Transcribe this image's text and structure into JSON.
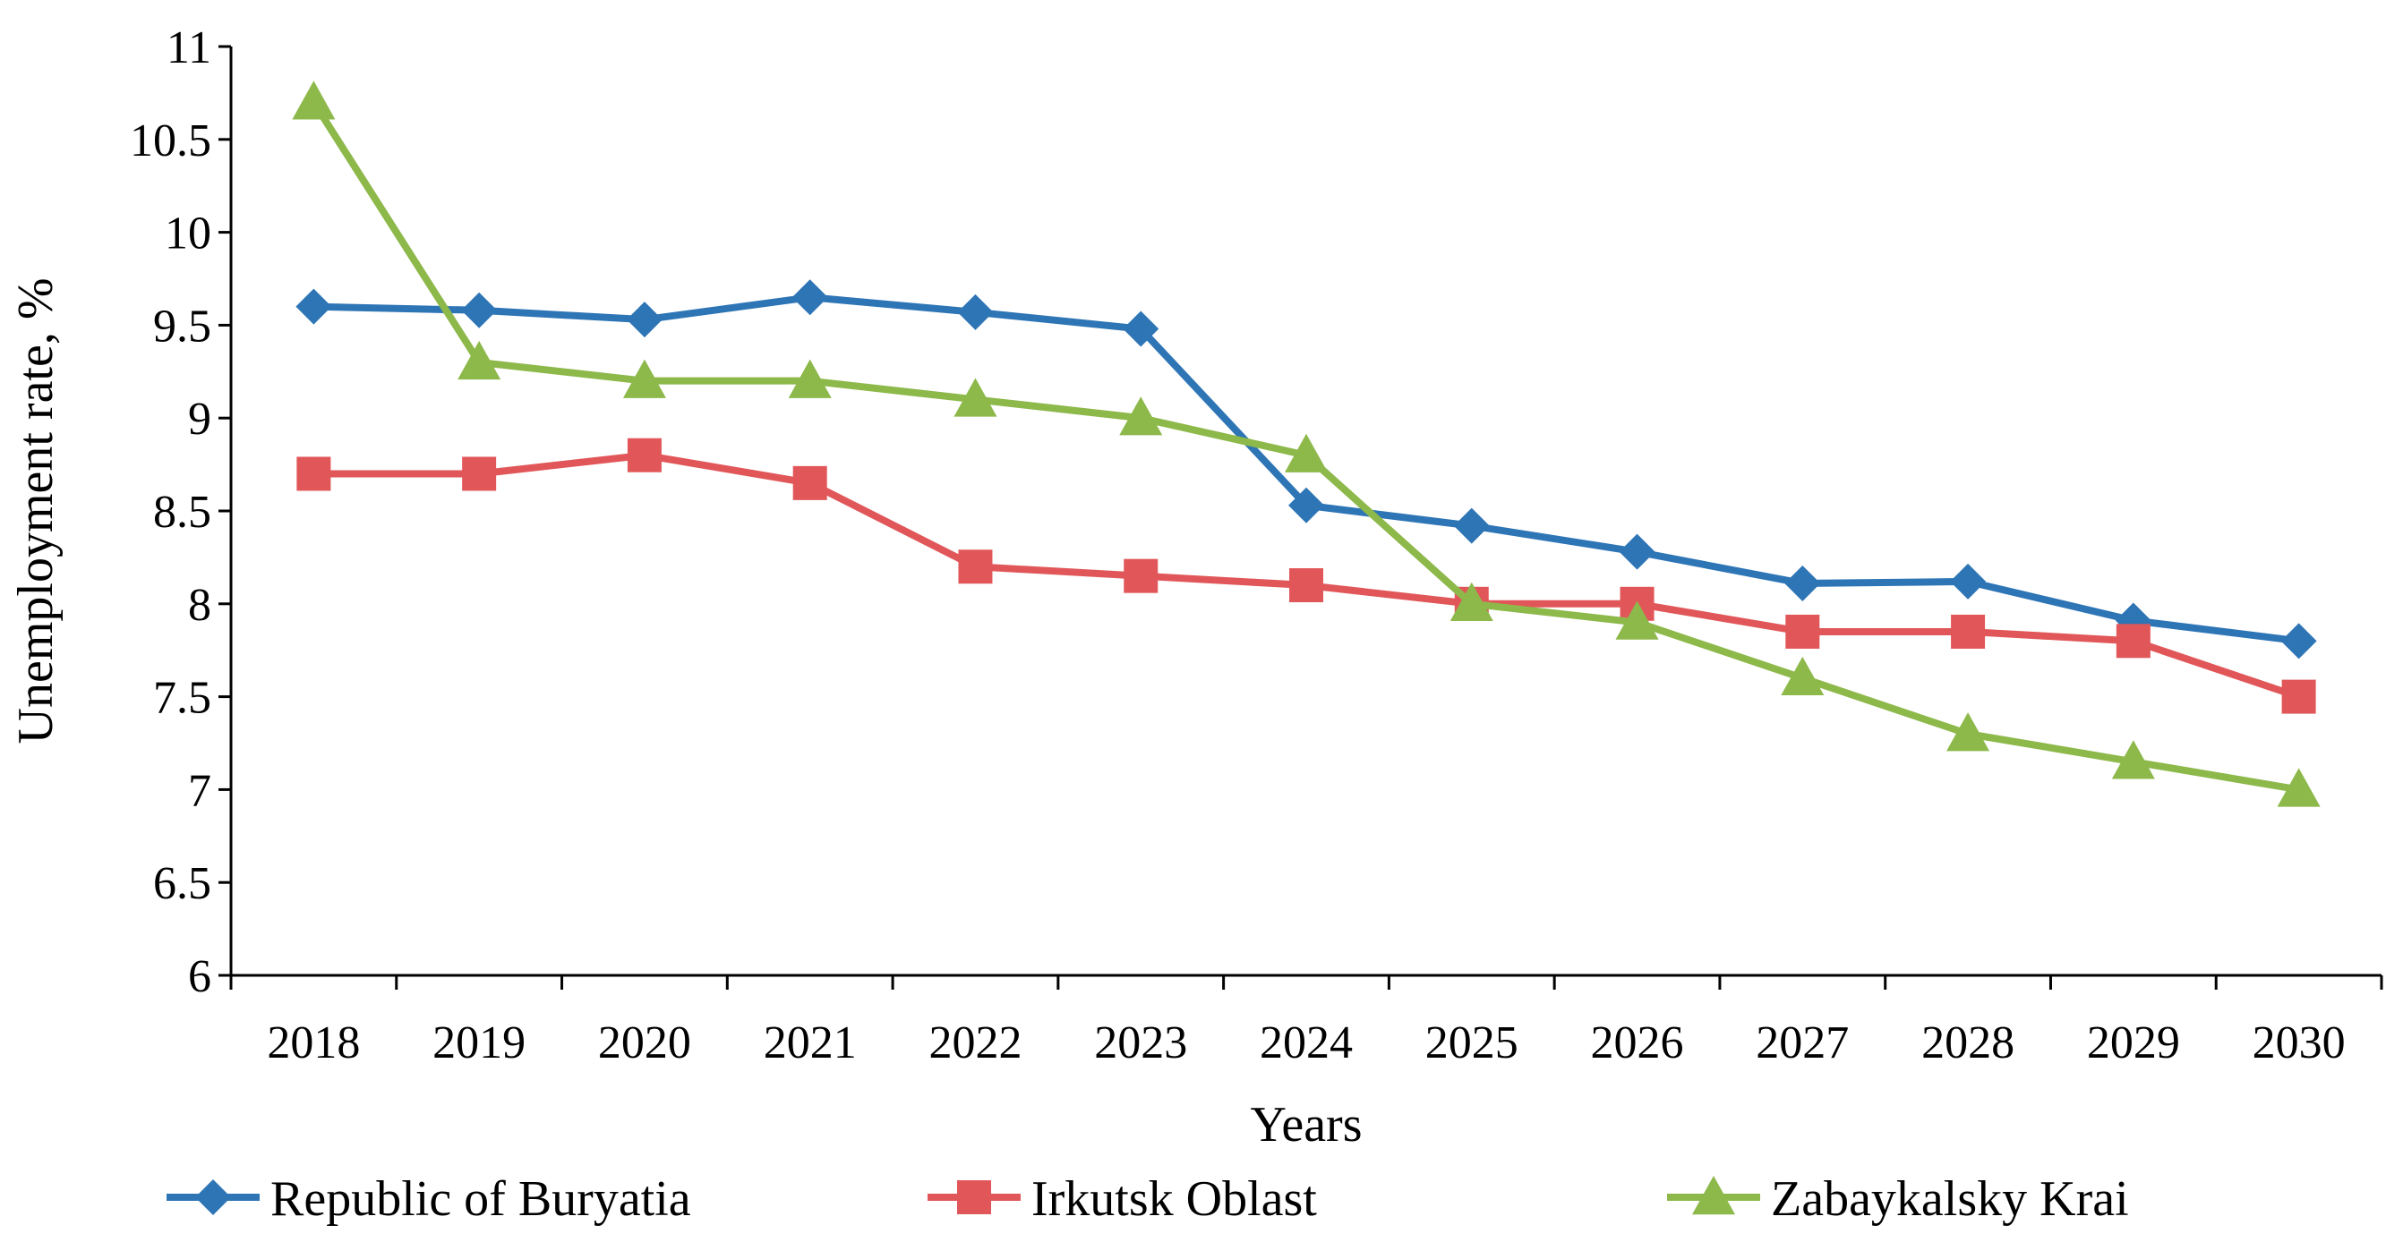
{
  "chart_data": {
    "type": "line",
    "categories": [
      "2018",
      "2019",
      "2020",
      "2021",
      "2022",
      "2023",
      "2024",
      "2025",
      "2026",
      "2027",
      "2028",
      "2029",
      "2030"
    ],
    "series": [
      {
        "name": "Republic of Buryatia",
        "color": "#2e75b6",
        "marker": "diamond",
        "values": [
          9.6,
          9.58,
          9.53,
          9.65,
          9.57,
          9.48,
          8.53,
          8.42,
          8.28,
          8.11,
          8.12,
          7.91,
          7.8
        ]
      },
      {
        "name": "Irkutsk Oblast",
        "color": "#e15759",
        "marker": "square",
        "values": [
          8.7,
          8.7,
          8.8,
          8.65,
          8.2,
          8.15,
          8.1,
          8.0,
          8.0,
          7.85,
          7.85,
          7.8,
          7.5
        ]
      },
      {
        "name": "Zabaykalsky Krai",
        "color": "#8db84a",
        "marker": "triangle",
        "values": [
          10.7,
          9.3,
          9.2,
          9.2,
          9.1,
          9.0,
          8.8,
          8.0,
          7.9,
          7.6,
          7.3,
          7.15,
          7.0
        ]
      }
    ],
    "yticks": [
      "6",
      "6.5",
      "7",
      "7.5",
      "8",
      "8.5",
      "9",
      "9.5",
      "10",
      "10.5",
      "11"
    ],
    "ylim": [
      6,
      11
    ],
    "xlabel": "Years",
    "ylabel": "Unemployment rate, %",
    "grid": false,
    "legend": "bottom"
  }
}
